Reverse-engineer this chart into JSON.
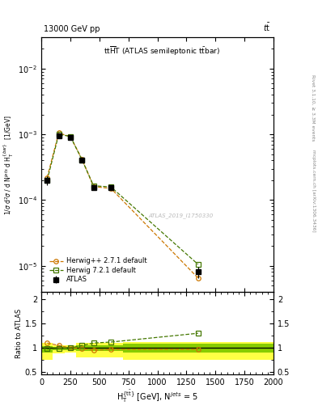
{
  "title_top_left": "13000 GeV pp",
  "title_top_right": "tt",
  "plot_title": "ttHT (ATLAS semileptonic ttbar)",
  "watermark": "ATLAS_2019_I1750330",
  "right_label_top": "Rivet 3.1.10, ≥ 3.3M events",
  "right_label_bottom": "mcplots.cern.ch [arXiv:1306.3436]",
  "x_centers": [
    50,
    150,
    250,
    350,
    450,
    600,
    1350
  ],
  "x_edges": [
    0,
    100,
    200,
    300,
    400,
    500,
    700,
    2000
  ],
  "atlas_y": [
    0.0002,
    0.00095,
    0.0009,
    0.0004,
    0.000155,
    0.000155,
    8e-06
  ],
  "atlas_yerr_lo": [
    3e-05,
    5e-05,
    4e-05,
    3e-05,
    1.5e-05,
    1.5e-05,
    1.5e-06
  ],
  "atlas_yerr_hi": [
    3e-05,
    5e-05,
    4e-05,
    3e-05,
    1.5e-05,
    1.5e-05,
    1.5e-06
  ],
  "herwig_pp_y": [
    0.00022,
    0.00105,
    0.00092,
    0.00042,
    0.00016,
    0.00015,
    6.5e-06
  ],
  "herwig7_y": [
    0.0002,
    0.001,
    0.00093,
    0.00041,
    0.000165,
    0.000158,
    1.05e-05
  ],
  "ratio_herwig_pp": [
    1.1,
    1.05,
    1.0,
    0.99,
    0.95,
    0.97,
    0.97
  ],
  "ratio_herwig7": [
    0.98,
    0.99,
    1.0,
    1.05,
    1.1,
    1.12,
    1.3
  ],
  "band_yellow_lo": [
    0.75,
    0.88,
    0.9,
    0.8,
    0.8,
    0.8,
    0.75
  ],
  "band_yellow_hi": [
    1.1,
    1.06,
    1.05,
    1.1,
    1.1,
    1.1,
    1.12
  ],
  "band_green_lo": [
    0.9,
    0.96,
    0.96,
    0.93,
    0.93,
    0.93,
    0.91
  ],
  "band_green_hi": [
    1.04,
    1.02,
    1.02,
    1.06,
    1.06,
    1.06,
    1.08
  ],
  "color_atlas": "#000000",
  "color_herwig_pp": "#cc7700",
  "color_herwig7": "#447700",
  "color_yellow": "#ffff44",
  "color_green": "#88cc00",
  "ylim_main": [
    4e-06,
    0.03
  ],
  "ylim_ratio": [
    0.45,
    2.15
  ],
  "xlim": [
    0,
    2000
  ]
}
